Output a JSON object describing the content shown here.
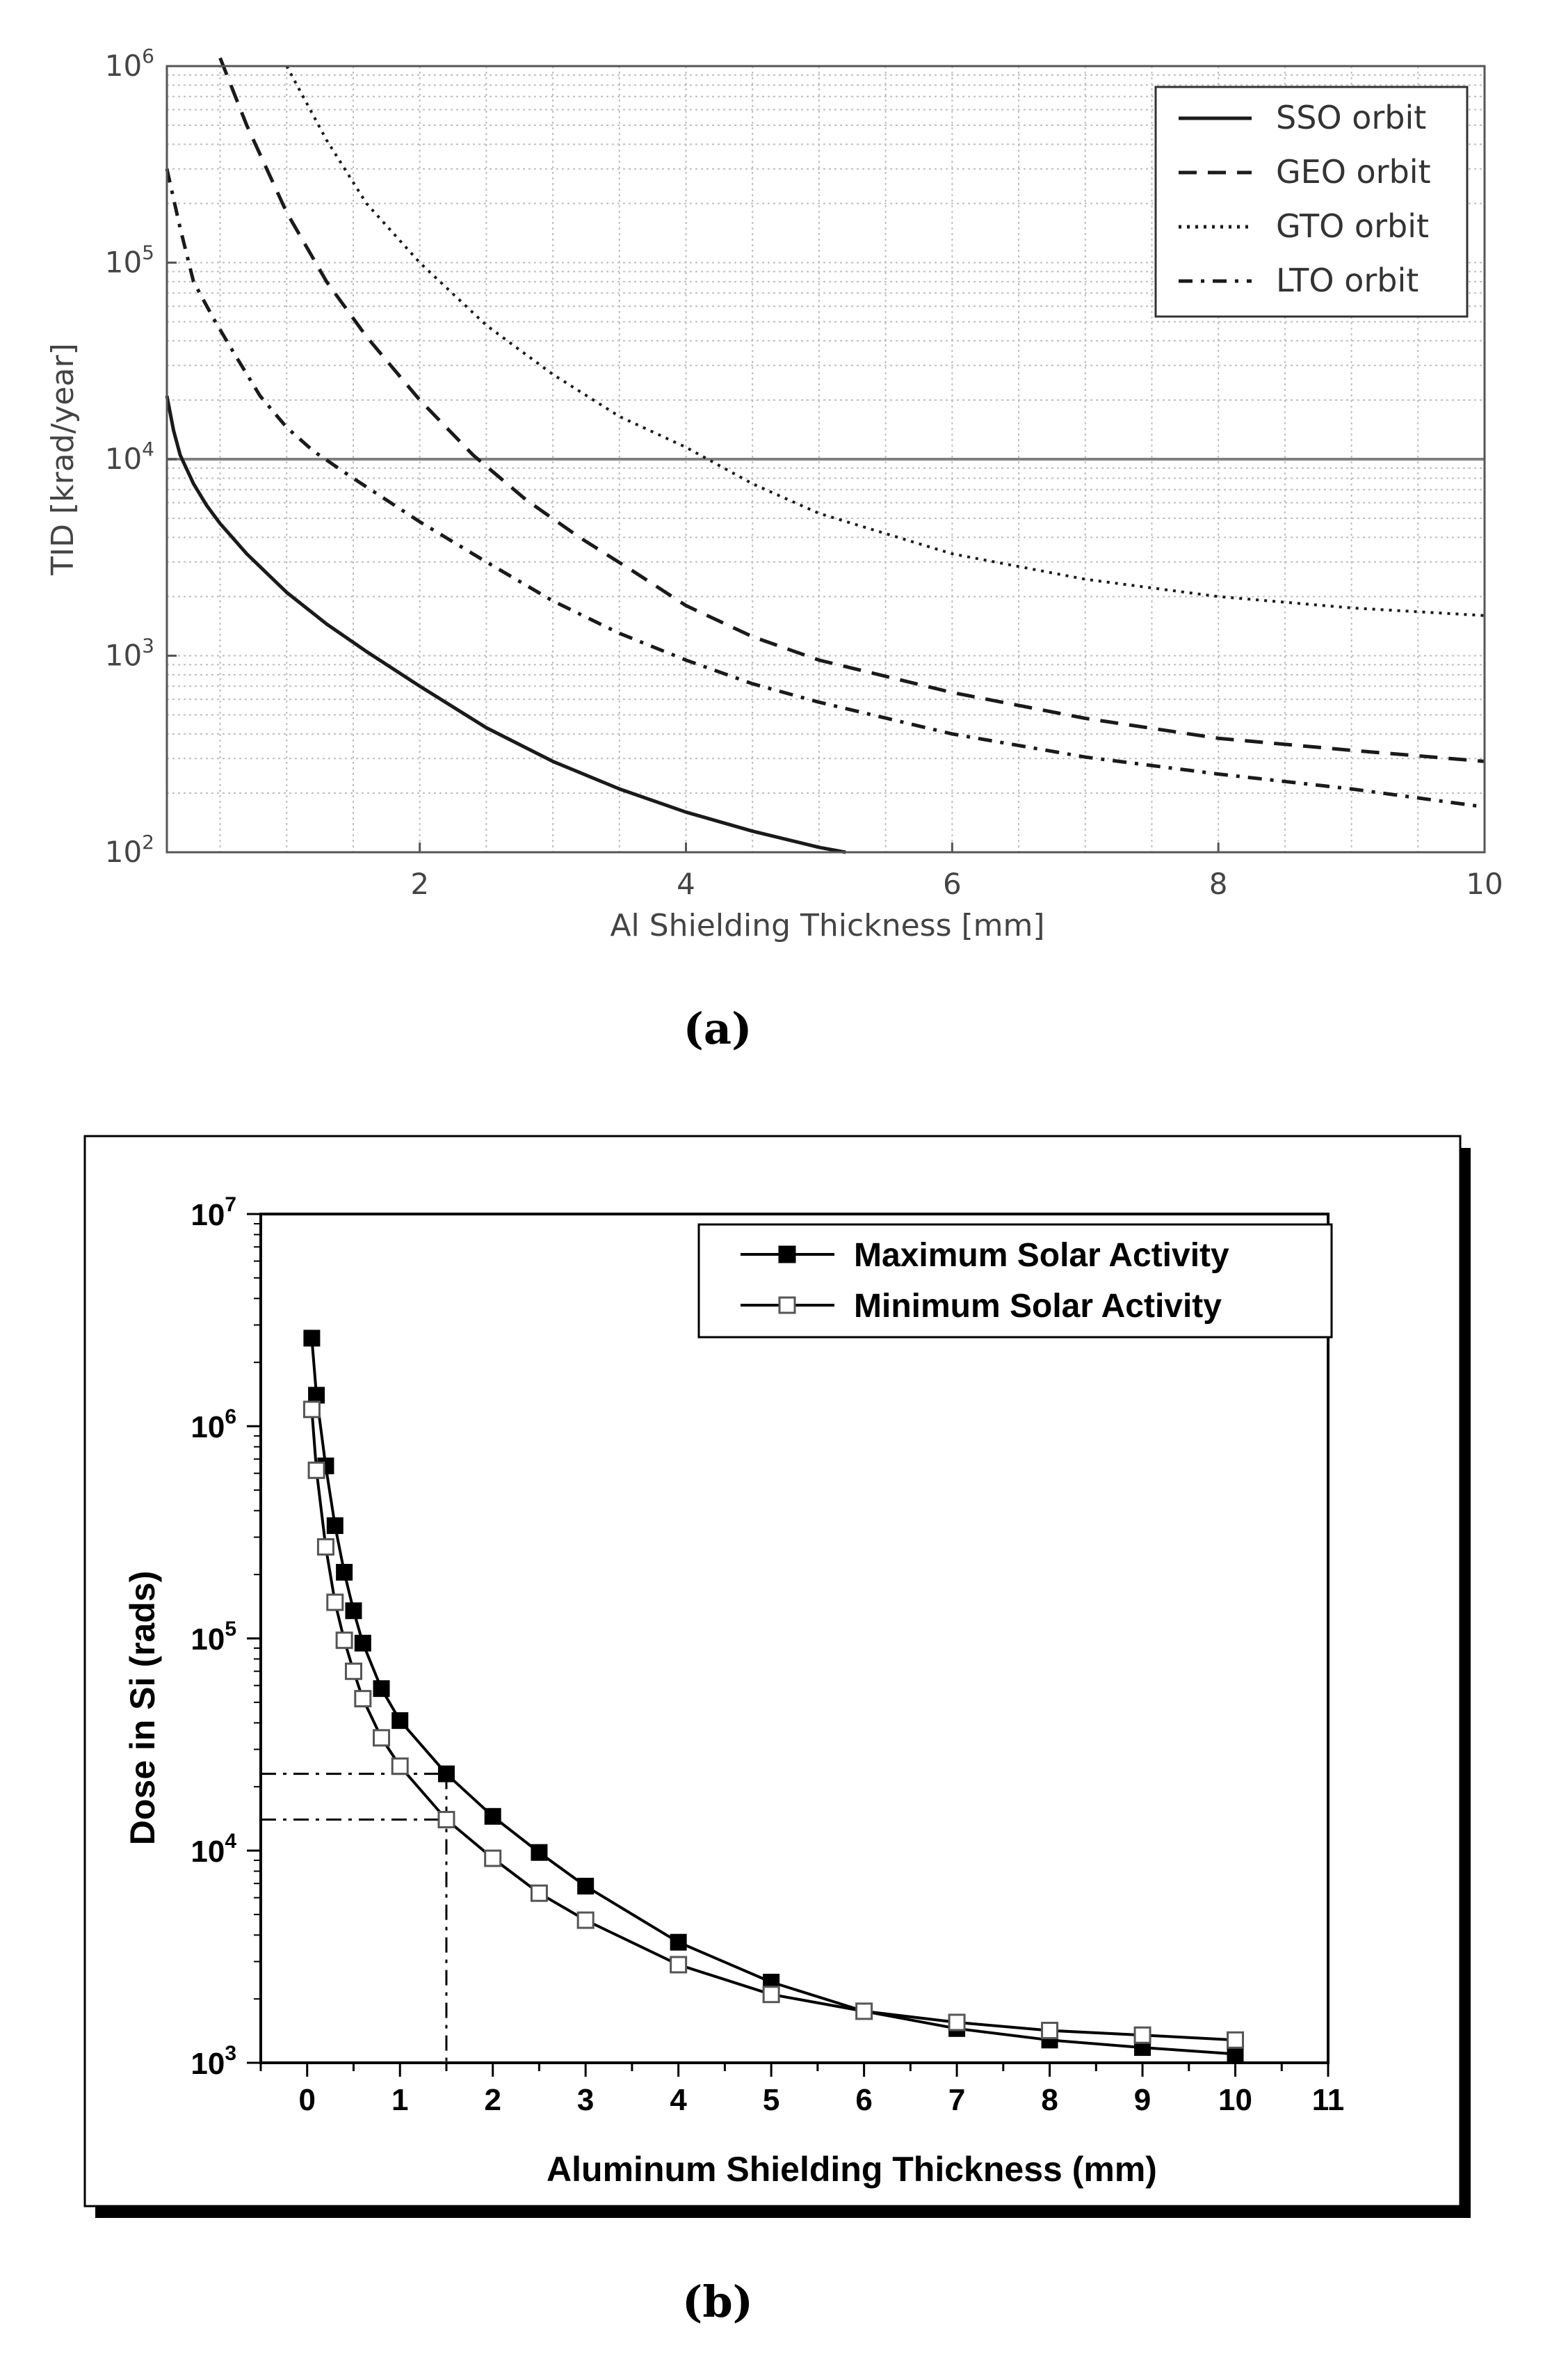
{
  "panel_a_label": "(a)",
  "panel_b_label": "(b)",
  "chart_data": [
    {
      "type": "line",
      "title": "",
      "xlabel": "Al Shielding Thickness [mm]",
      "ylabel": "TID [krad/year]",
      "yscale": "log",
      "xlim": [
        0.1,
        10
      ],
      "ylim": [
        100,
        1000000
      ],
      "x_ticks": [
        2,
        4,
        6,
        8,
        10
      ],
      "x_tick_labels": [
        "2",
        "4",
        "6",
        "8",
        "10"
      ],
      "y_ticks": [
        100,
        1000,
        10000,
        100000,
        1000000
      ],
      "y_tick_labels": [
        {
          "base": "10",
          "exp": "2"
        },
        {
          "base": "10",
          "exp": "3"
        },
        {
          "base": "10",
          "exp": "4"
        },
        {
          "base": "10",
          "exp": "5"
        },
        {
          "base": "10",
          "exp": "6"
        }
      ],
      "grid": true,
      "legend_position": "top-right",
      "reference_line": {
        "y": 10000,
        "color": "#808080"
      },
      "series": [
        {
          "name": "SSO orbit",
          "style": "solid",
          "x": [
            0.1,
            0.15,
            0.2,
            0.3,
            0.4,
            0.5,
            0.7,
            1.0,
            1.3,
            1.6,
            2.0,
            2.5,
            3.0,
            3.5,
            4.0,
            4.5,
            5.0,
            5.2
          ],
          "y": [
            21000,
            14000,
            10500,
            7500,
            5800,
            4700,
            3300,
            2100,
            1450,
            1050,
            700,
            430,
            290,
            210,
            160,
            128,
            106,
            100
          ]
        },
        {
          "name": "GEO orbit",
          "style": "dashed",
          "x": [
            0.5,
            0.7,
            1.0,
            1.3,
            1.6,
            2.0,
            2.4,
            2.8,
            3.2,
            3.6,
            4.0,
            4.5,
            5.0,
            6.0,
            7.0,
            8.0,
            9.0,
            10.0
          ],
          "y": [
            1100000,
            500000,
            180000,
            80000,
            42000,
            20000,
            10500,
            6200,
            4000,
            2700,
            1800,
            1250,
            950,
            650,
            480,
            380,
            330,
            290
          ]
        },
        {
          "name": "GTO orbit",
          "style": "dotted",
          "x": [
            1.0,
            1.3,
            1.6,
            2.0,
            2.5,
            3.0,
            3.5,
            4.0,
            4.5,
            5.0,
            6.0,
            7.0,
            8.0,
            9.0,
            10.0
          ],
          "y": [
            1000000,
            420000,
            200000,
            100000,
            48000,
            27000,
            16500,
            11500,
            7500,
            5300,
            3300,
            2450,
            2000,
            1750,
            1600
          ]
        },
        {
          "name": "LTO orbit",
          "style": "dash-dot",
          "x": [
            0.1,
            0.2,
            0.3,
            0.45,
            0.6,
            0.8,
            1.0,
            1.2,
            1.5,
            2.0,
            2.5,
            3.0,
            3.5,
            4.0,
            4.5,
            5.0,
            6.0,
            7.0,
            8.0,
            9.0,
            10.0
          ],
          "y": [
            300000,
            150000,
            80000,
            52000,
            35000,
            21000,
            14500,
            11000,
            8000,
            4800,
            3000,
            1900,
            1300,
            950,
            720,
            580,
            400,
            305,
            250,
            210,
            170
          ]
        }
      ]
    },
    {
      "type": "line",
      "title": "",
      "xlabel": "Aluminum Shielding Thickness (mm)",
      "ylabel": "Dose in Si (rads)",
      "yscale": "log",
      "xlim": [
        -0.5,
        11
      ],
      "ylim": [
        1000,
        10000000
      ],
      "x_ticks": [
        0,
        1,
        2,
        3,
        4,
        5,
        6,
        7,
        8,
        9,
        10,
        11
      ],
      "x_tick_labels": [
        "0",
        "1",
        "2",
        "3",
        "4",
        "5",
        "6",
        "7",
        "8",
        "9",
        "10",
        "11"
      ],
      "y_ticks": [
        1000,
        10000,
        100000,
        1000000,
        10000000
      ],
      "y_tick_labels": [
        {
          "base": "10",
          "exp": "3"
        },
        {
          "base": "10",
          "exp": "4"
        },
        {
          "base": "10",
          "exp": "5"
        },
        {
          "base": "10",
          "exp": "6"
        },
        {
          "base": "10",
          "exp": "7"
        }
      ],
      "grid": false,
      "legend_position": "top-right",
      "annotation": {
        "x": 1.5,
        "y_values": [
          23000,
          14000
        ],
        "style": "dash-dot"
      },
      "series": [
        {
          "name": "Maximum Solar Activity",
          "marker": "filled-square",
          "x": [
            0.05,
            0.1,
            0.2,
            0.3,
            0.4,
            0.5,
            0.6,
            0.8,
            1.0,
            1.5,
            2.0,
            2.5,
            3.0,
            4.0,
            5.0,
            6.0,
            7.0,
            8.0,
            9.0,
            10.0
          ],
          "y": [
            2600000,
            1400000,
            650000,
            340000,
            205000,
            135000,
            95000,
            58000,
            41000,
            23000,
            14500,
            9800,
            6800,
            3700,
            2400,
            1750,
            1450,
            1280,
            1180,
            1100
          ]
        },
        {
          "name": "Minimum Solar Activity",
          "marker": "open-square",
          "x": [
            0.05,
            0.1,
            0.2,
            0.3,
            0.4,
            0.5,
            0.6,
            0.8,
            1.0,
            1.5,
            2.0,
            2.5,
            3.0,
            4.0,
            5.0,
            6.0,
            7.0,
            8.0,
            9.0,
            10.0
          ],
          "y": [
            1200000,
            620000,
            270000,
            148000,
            98000,
            70000,
            52000,
            34000,
            25000,
            14000,
            9200,
            6300,
            4700,
            2900,
            2100,
            1750,
            1550,
            1420,
            1350,
            1280
          ]
        }
      ]
    }
  ]
}
